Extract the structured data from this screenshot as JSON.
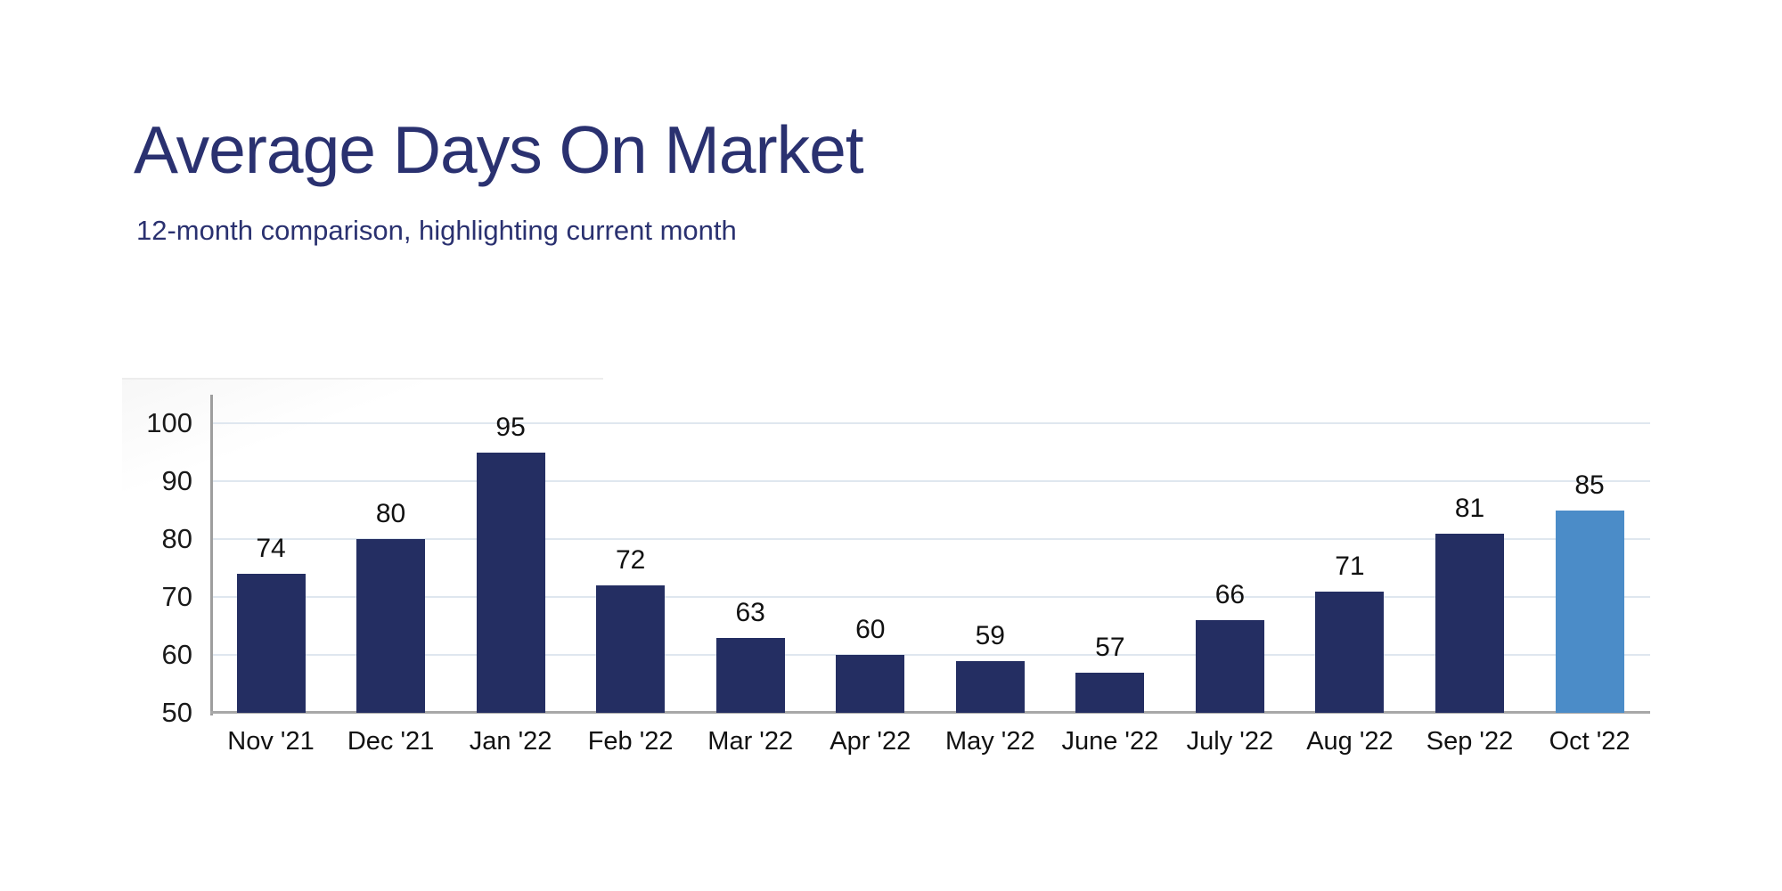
{
  "page": {
    "title": "Average Days On Market",
    "subtitle": "12-month comparison, highlighting current month"
  },
  "colors": {
    "title_text": "#2a3170",
    "subtitle_text": "#2a3170",
    "bar": "#242e62",
    "bar_highlight": "#4b8cc8",
    "gridline": "#dfe7ef",
    "y_axis_line": "#9e9e9e",
    "x_axis_line": "#a8a8a8",
    "label_text": "#111111"
  },
  "chart_data": {
    "type": "bar",
    "title": "Average Days On Market",
    "subtitle": "12-month comparison, highlighting current month",
    "categories": [
      "Nov '21",
      "Dec '21",
      "Jan '22",
      "Feb '22",
      "Mar '22",
      "Apr '22",
      "May '22",
      "June '22",
      "July '22",
      "Aug '22",
      "Sep '22",
      "Oct '22"
    ],
    "values": [
      74,
      80,
      95,
      72,
      63,
      60,
      59,
      57,
      66,
      71,
      81,
      85
    ],
    "highlight_index": 11,
    "highlighted_category": "Oct '22",
    "xlabel": "",
    "ylabel": "",
    "ylim": [
      50,
      105
    ],
    "yticks": [
      50,
      60,
      70,
      80,
      90,
      100
    ],
    "grid": true,
    "legend_position": "none",
    "data_labels": true
  }
}
